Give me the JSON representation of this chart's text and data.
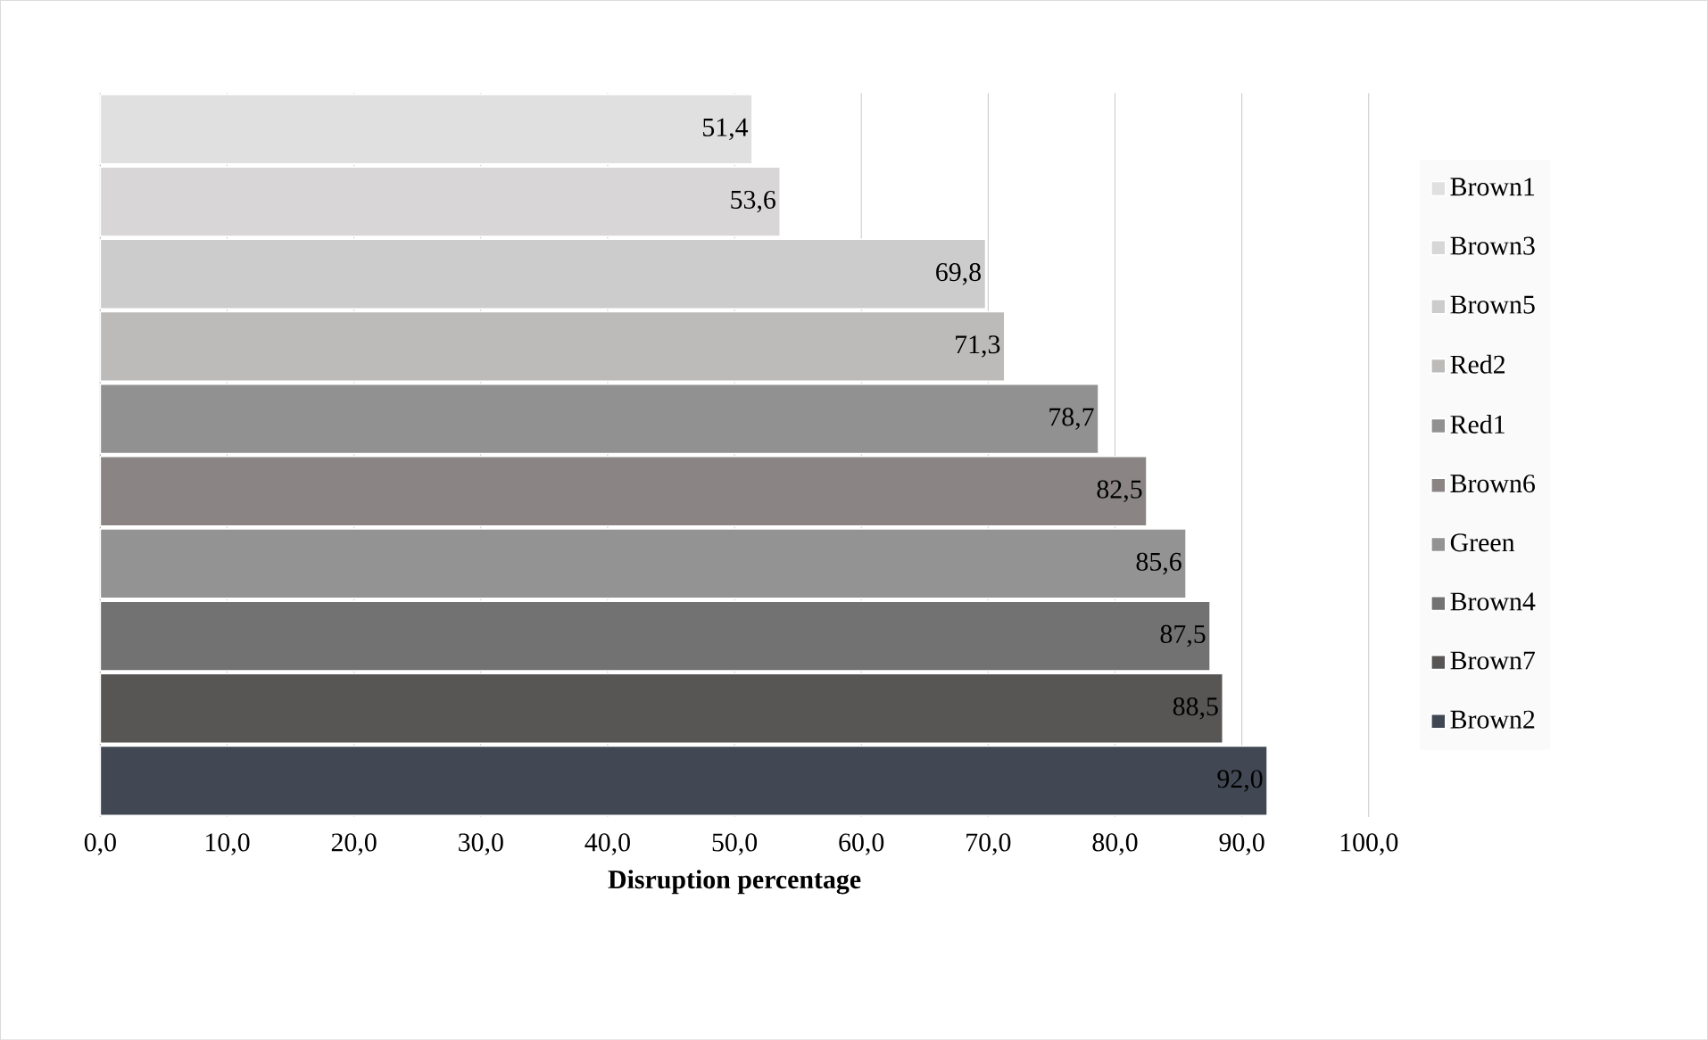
{
  "chart_data": {
    "type": "bar",
    "orientation": "horizontal",
    "xlabel": "Disruption percentage",
    "categories": [
      null
    ],
    "series": [
      {
        "name": "Brown1",
        "color": "#e0e0e0",
        "values": [
          51.4
        ],
        "value_labels": [
          "51,4"
        ]
      },
      {
        "name": "Brown3",
        "color": "#d8d6d6",
        "values": [
          53.6
        ],
        "value_labels": [
          "53,6"
        ]
      },
      {
        "name": "Brown5",
        "color": "#cccccc",
        "values": [
          69.8
        ],
        "value_labels": [
          "69,8"
        ]
      },
      {
        "name": "Red2",
        "color": "#bdbbba",
        "values": [
          71.3
        ],
        "value_labels": [
          "71,3"
        ]
      },
      {
        "name": "Red1",
        "color": "#919191",
        "values": [
          78.7
        ],
        "value_labels": [
          "78,7"
        ]
      },
      {
        "name": "Brown6",
        "color": "#8a8584",
        "values": [
          82.5
        ],
        "value_labels": [
          "82,5"
        ]
      },
      {
        "name": "Green",
        "color": "#939393",
        "values": [
          85.6
        ],
        "value_labels": [
          "85,6"
        ]
      },
      {
        "name": "Brown4",
        "color": "#727272",
        "values": [
          87.5
        ],
        "value_labels": [
          "87,5"
        ]
      },
      {
        "name": "Brown7",
        "color": "#585555",
        "values": [
          88.5
        ],
        "value_labels": [
          "88,5"
        ]
      },
      {
        "name": "Brown2",
        "color": "#414853",
        "values": [
          92.0
        ],
        "value_labels": [
          "92,0"
        ]
      }
    ],
    "xlim": [
      0,
      100
    ],
    "xticks": [
      {
        "value": 0,
        "label": "0,0"
      },
      {
        "value": 10,
        "label": "10,0"
      },
      {
        "value": 20,
        "label": "20,0"
      },
      {
        "value": 30,
        "label": "30,0"
      },
      {
        "value": 40,
        "label": "40,0"
      },
      {
        "value": 50,
        "label": "50,0"
      },
      {
        "value": 60,
        "label": "60,0"
      },
      {
        "value": 70,
        "label": "70,0"
      },
      {
        "value": 80,
        "label": "80,0"
      },
      {
        "value": 90,
        "label": "90,0"
      },
      {
        "value": 100,
        "label": "100,0"
      }
    ],
    "grid": "x",
    "legend": "right"
  }
}
